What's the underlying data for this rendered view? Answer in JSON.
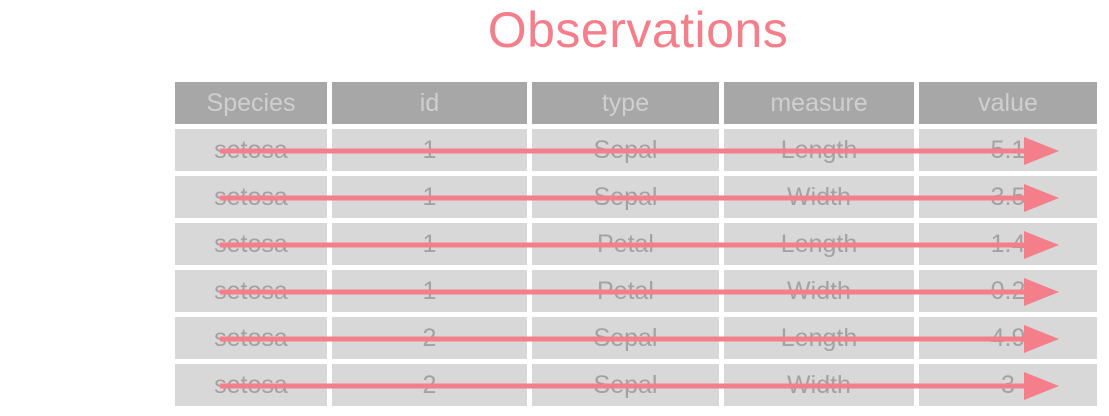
{
  "title": "Observations",
  "table": {
    "headers": [
      "Species",
      "id",
      "type",
      "measure",
      "value"
    ],
    "rows": [
      [
        "setosa",
        "1",
        "Sepal",
        "Length",
        "5.1"
      ],
      [
        "setosa",
        "1",
        "Sepal",
        "Width",
        "3.5"
      ],
      [
        "setosa",
        "1",
        "Petal",
        "Length",
        "1.4"
      ],
      [
        "setosa",
        "1",
        "Petal",
        "Width",
        "0.2"
      ],
      [
        "setosa",
        "2",
        "Sepal",
        "Length",
        "4.9"
      ],
      [
        "setosa",
        "2",
        "Sepal",
        "Width",
        "3"
      ]
    ]
  },
  "colors": {
    "accent": "#f47f8a",
    "header_bg": "#a7a7a7",
    "cell_bg": "#d8d8d8",
    "text": "#a2a2a2"
  }
}
